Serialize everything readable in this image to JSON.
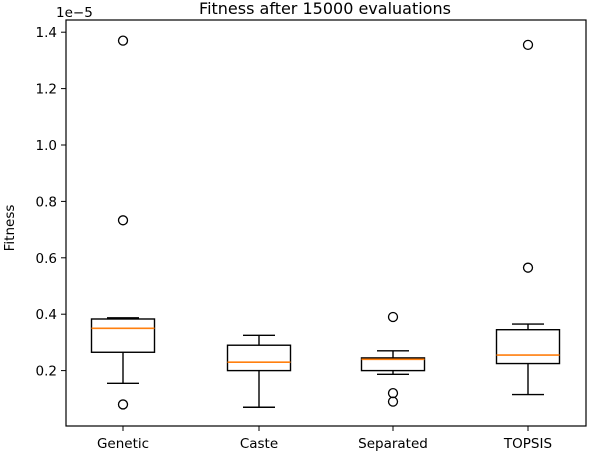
{
  "chart_data": {
    "type": "box",
    "title": "Fitness after 15000 evaluations",
    "xlabel": "",
    "ylabel": "Fitness",
    "y_scale_label": "1e−5",
    "ylim": [
      0.0,
      1.48
    ],
    "yticks": [
      "0.2",
      "0.4",
      "0.6",
      "0.8",
      "1.0",
      "1.2",
      "1.4"
    ],
    "ytick_values": [
      0.2,
      0.4,
      0.6,
      0.8,
      1.0,
      1.2,
      1.4
    ],
    "grid": false,
    "categories": [
      "Genetic",
      "Caste",
      "Separated",
      "TOPSIS"
    ],
    "boxes": [
      {
        "category": "Genetic",
        "whisker_low": 0.155,
        "q1": 0.265,
        "median": 0.35,
        "q3": 0.383,
        "whisker_high": 0.387,
        "outliers": [
          0.08,
          0.733,
          1.37
        ]
      },
      {
        "category": "Caste",
        "whisker_low": 0.07,
        "q1": 0.2,
        "median": 0.23,
        "q3": 0.29,
        "whisker_high": 0.325,
        "outliers": []
      },
      {
        "category": "Separated",
        "whisker_low": 0.187,
        "q1": 0.2,
        "median": 0.24,
        "q3": 0.245,
        "whisker_high": 0.27,
        "outliers": [
          0.09,
          0.12,
          0.39
        ]
      },
      {
        "category": "TOPSIS",
        "whisker_low": 0.115,
        "q1": 0.225,
        "median": 0.255,
        "q3": 0.345,
        "whisker_high": 0.365,
        "outliers": [
          0.565,
          1.355
        ]
      }
    ],
    "colors": {
      "median": "#ff7f0e",
      "box": "#000000",
      "background": "#ffffff"
    }
  }
}
